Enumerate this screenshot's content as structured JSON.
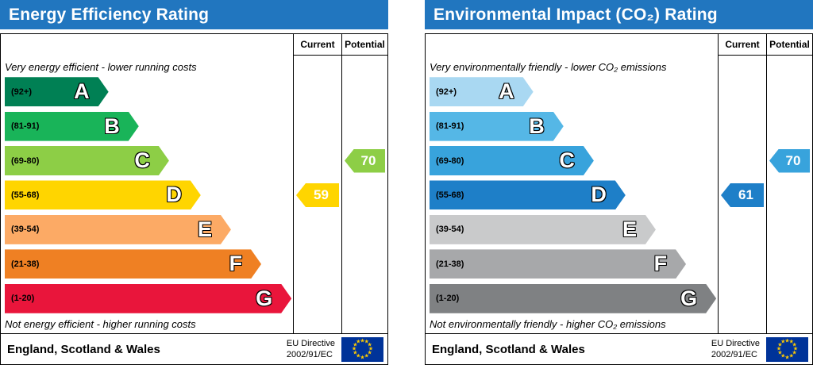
{
  "chart_data": [
    {
      "type": "bar",
      "orientation": "horizontal",
      "title": "Energy Efficiency Rating",
      "columns": [
        "Current",
        "Potential"
      ],
      "top_note": "Very energy efficient - lower running costs",
      "bottom_note": "Not energy efficient - higher running costs",
      "bands": [
        {
          "letter": "A",
          "range": "(92+)",
          "color": "#008054",
          "width_pct": 36
        },
        {
          "letter": "B",
          "range": "(81-91)",
          "color": "#19b459",
          "width_pct": 46.5
        },
        {
          "letter": "C",
          "range": "(69-80)",
          "color": "#8dce46",
          "width_pct": 57
        },
        {
          "letter": "D",
          "range": "(55-68)",
          "color": "#ffd500",
          "width_pct": 68
        },
        {
          "letter": "E",
          "range": "(39-54)",
          "color": "#fcaa65",
          "width_pct": 78.5
        },
        {
          "letter": "F",
          "range": "(21-38)",
          "color": "#ef8023",
          "width_pct": 89
        },
        {
          "letter": "G",
          "range": "(1-20)",
          "color": "#e9153b",
          "width_pct": 99.5
        }
      ],
      "current": {
        "value": 59,
        "band": "D",
        "band_index": 3,
        "color": "#ffd500"
      },
      "potential": {
        "value": 70,
        "band": "C",
        "band_index": 2,
        "color": "#8dce46"
      },
      "footer": {
        "region": "England, Scotland & Wales",
        "directive_line1": "EU Directive",
        "directive_line2": "2002/91/EC"
      }
    },
    {
      "type": "bar",
      "orientation": "horizontal",
      "title": "Environmental Impact (CO₂) Rating",
      "columns": [
        "Current",
        "Potential"
      ],
      "top_note": "Very environmentally friendly - lower CO₂ emissions",
      "bottom_note": "Not environmentally friendly - higher CO₂ emissions",
      "bands": [
        {
          "letter": "A",
          "range": "(92+)",
          "color": "#a9d8f2",
          "width_pct": 36
        },
        {
          "letter": "B",
          "range": "(81-91)",
          "color": "#55b7e6",
          "width_pct": 46.5
        },
        {
          "letter": "C",
          "range": "(69-80)",
          "color": "#38a3dc",
          "width_pct": 57
        },
        {
          "letter": "D",
          "range": "(55-68)",
          "color": "#1e7fc8",
          "width_pct": 68
        },
        {
          "letter": "E",
          "range": "(39-54)",
          "color": "#c9cacb",
          "width_pct": 78.5
        },
        {
          "letter": "F",
          "range": "(21-38)",
          "color": "#a7a8aa",
          "width_pct": 89
        },
        {
          "letter": "G",
          "range": "(1-20)",
          "color": "#7f8183",
          "width_pct": 99.5
        }
      ],
      "current": {
        "value": 61,
        "band": "D",
        "band_index": 3,
        "color": "#1e7fc8"
      },
      "potential": {
        "value": 70,
        "band": "C",
        "band_index": 2,
        "color": "#38a3dc"
      },
      "footer": {
        "region": "England, Scotland & Wales",
        "directive_line1": "EU Directive",
        "directive_line2": "2002/91/EC"
      }
    }
  ],
  "theme": {
    "header_bg": "#2176bf",
    "header_text": "#ffffff",
    "border": "#000000",
    "flag_bg": "#003399",
    "flag_star": "#ffcc00"
  }
}
